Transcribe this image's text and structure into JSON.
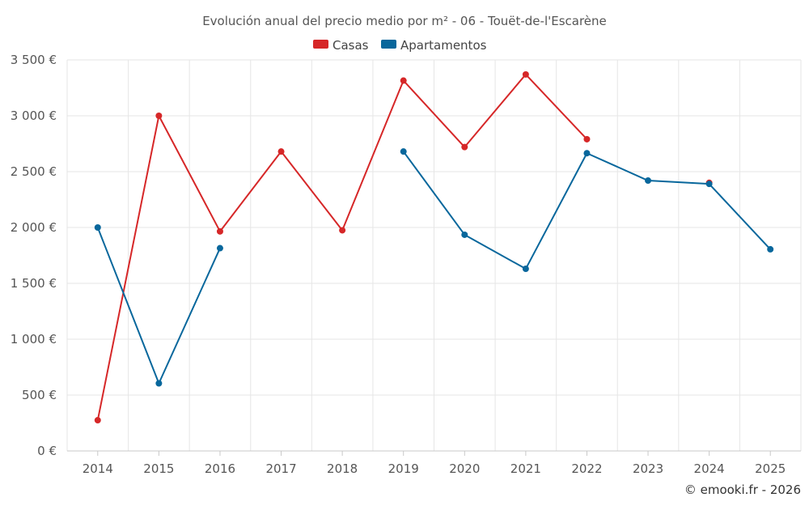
{
  "chart_data": {
    "type": "line",
    "title": "Evolución anual del precio medio por m² - 06 - Touët-de-l'Escarène",
    "categories": [
      "2014",
      "2015",
      "2016",
      "2017",
      "2018",
      "2019",
      "2020",
      "2021",
      "2022",
      "2023",
      "2024",
      "2025"
    ],
    "ylim": [
      0,
      3500
    ],
    "yticks": [
      0,
      500,
      1000,
      1500,
      2000,
      2500,
      3000,
      3500
    ],
    "ytick_labels": [
      "0 €",
      "500 €",
      "1 000 €",
      "1 500 €",
      "2 000 €",
      "2 500 €",
      "3 000 €",
      "3 500 €"
    ],
    "xlabel": "",
    "ylabel": "",
    "legend_position": "top-center",
    "grid": true,
    "series": [
      {
        "name": "Casas",
        "color": "#d62728",
        "values": [
          275,
          3000,
          1965,
          2680,
          1975,
          3315,
          2720,
          3370,
          2790,
          null,
          2400,
          null
        ]
      },
      {
        "name": "Apartamentos",
        "color": "#08679c",
        "values": [
          2000,
          605,
          1815,
          null,
          null,
          2680,
          1935,
          1630,
          2665,
          2420,
          2390,
          1805
        ]
      }
    ]
  },
  "credit": "© emooki.fr - 2026"
}
